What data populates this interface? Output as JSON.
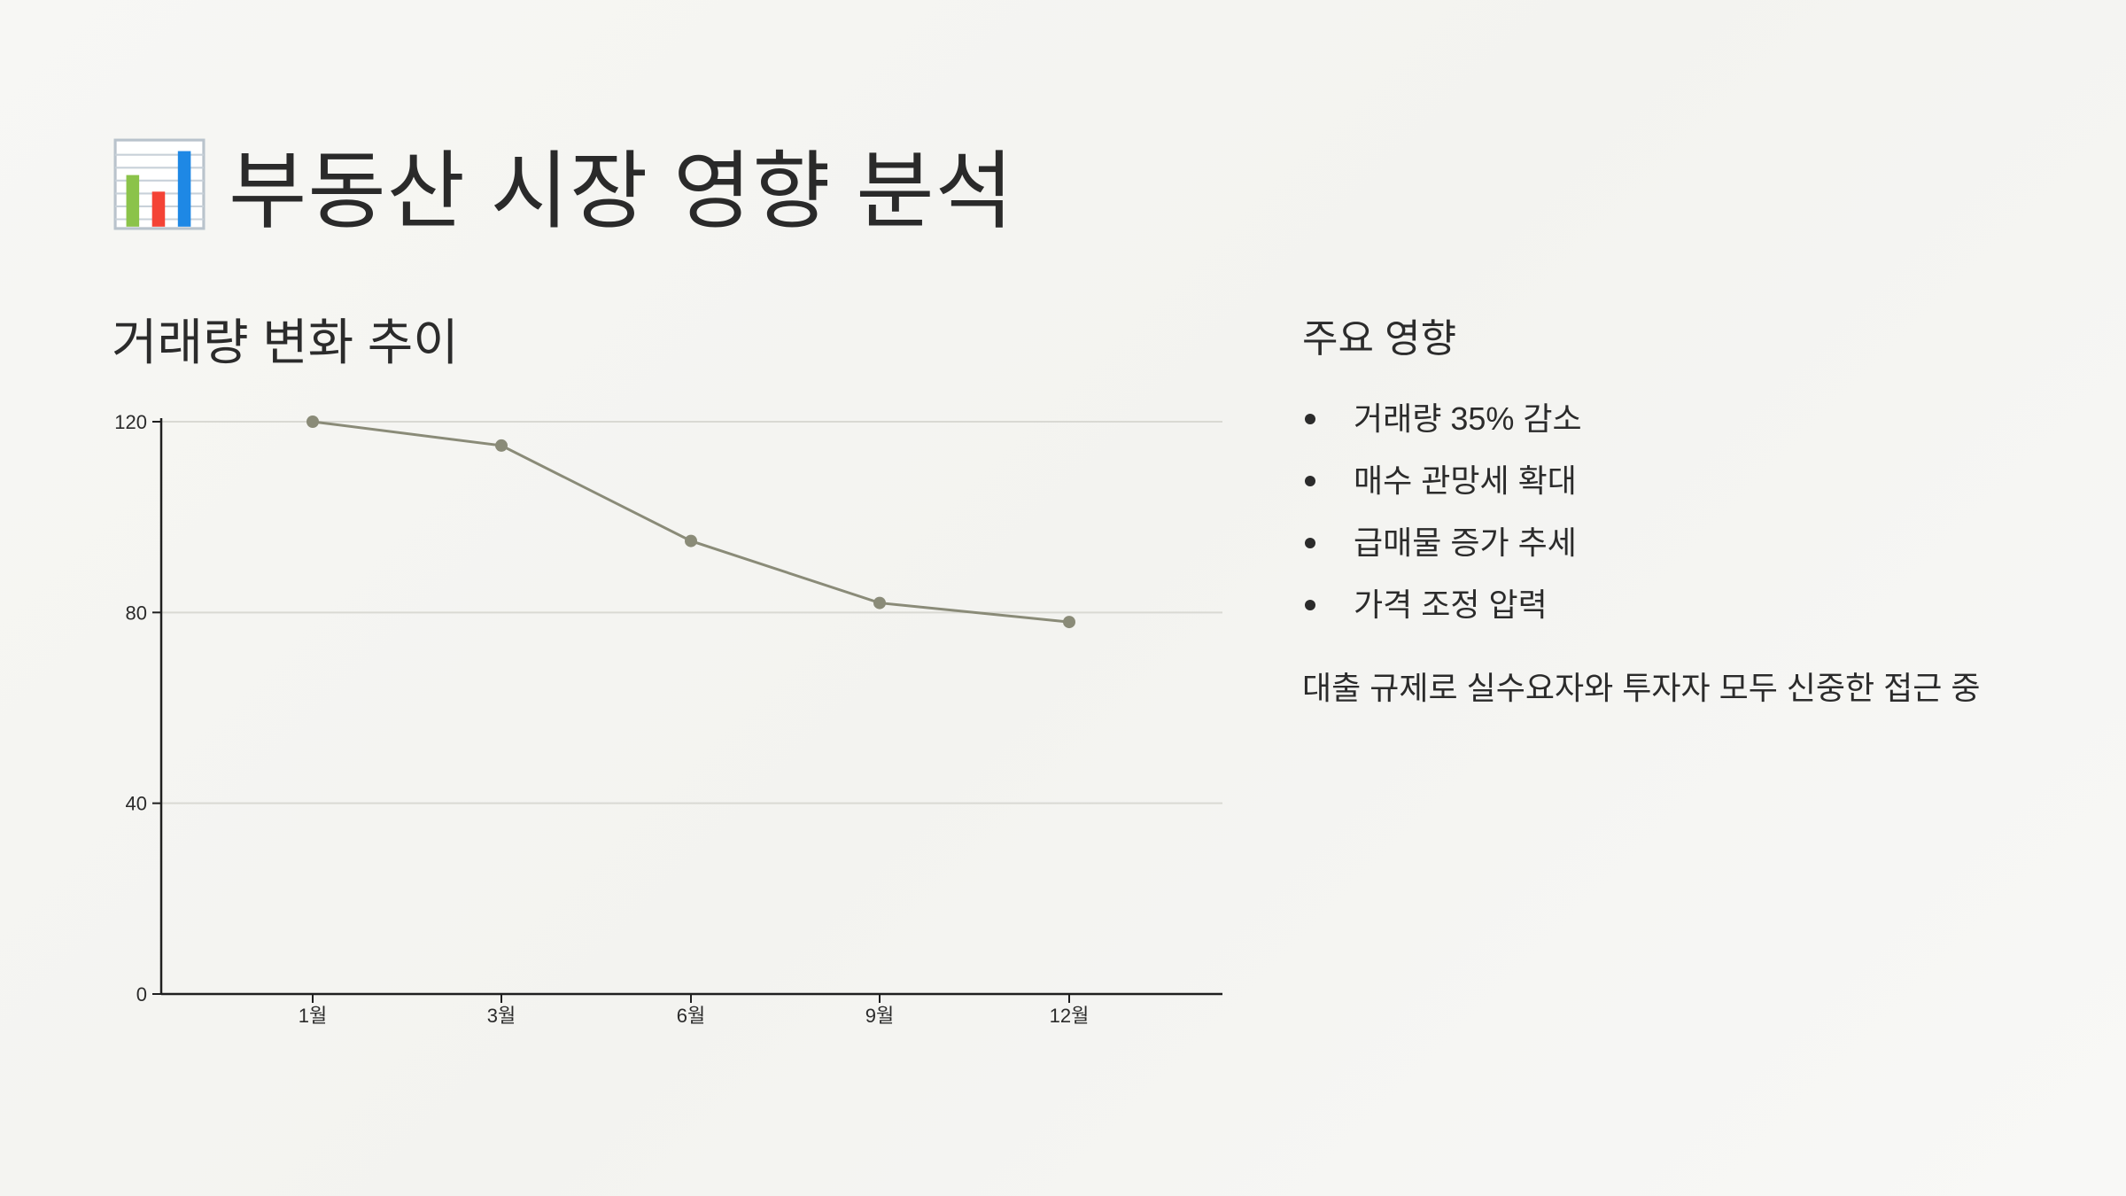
{
  "page": {
    "title": "부동산 시장 영향 분석",
    "title_icon": "bar-chart-icon"
  },
  "chart_data": {
    "type": "line",
    "title": "거래량 변화 추이",
    "categories": [
      "1월",
      "3월",
      "6월",
      "9월",
      "12월"
    ],
    "values": [
      120,
      115,
      95,
      82,
      78
    ],
    "ylim": [
      0,
      120
    ],
    "yticks": [
      0,
      40,
      80,
      120
    ],
    "xlabel": "",
    "ylabel": "",
    "grid": true,
    "line_color": "#8a8b78",
    "grid_color": "#d9d9d3",
    "axis_color": "#1f1f1f"
  },
  "impacts": {
    "title": "주요 영향",
    "items": [
      "거래량 35% 감소",
      "매수 관망세 확대",
      "급매물 증가 추세",
      "가격 조정 압력"
    ],
    "note": "대출 규제로 실수요자와 투자자 모두 신중한 접근 중"
  }
}
